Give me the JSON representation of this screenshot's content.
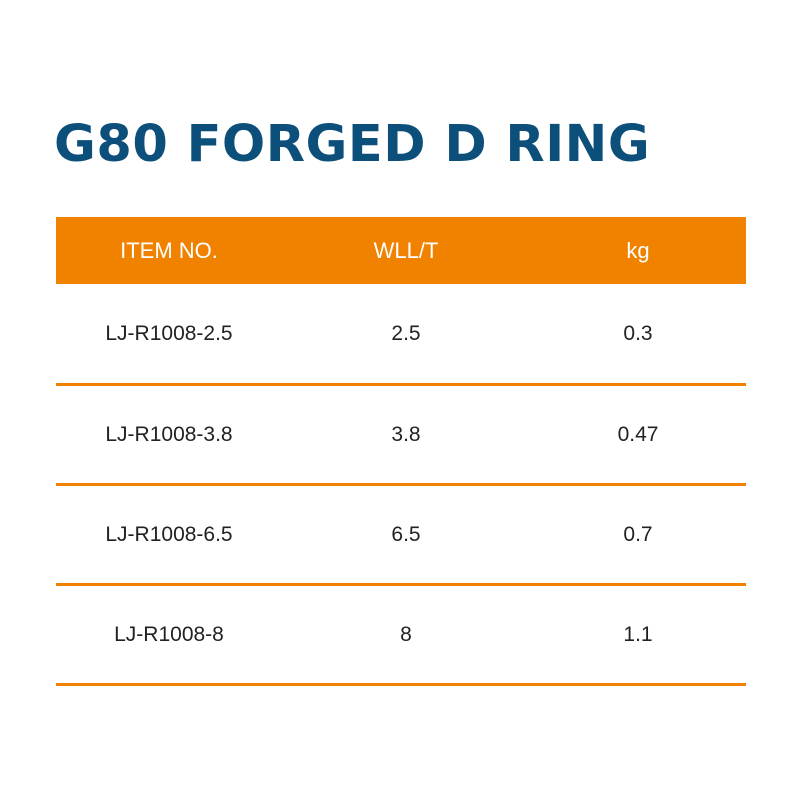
{
  "title": "G80 FORGED D RING",
  "table": {
    "headers": [
      "ITEM NO.",
      "WLL/T",
      "kg"
    ],
    "rows": [
      {
        "item_no": "LJ-R1008-2.5",
        "wll": "2.5",
        "kg": "0.3"
      },
      {
        "item_no": "LJ-R1008-3.8",
        "wll": "3.8",
        "kg": "0.47"
      },
      {
        "item_no": "LJ-R1008-6.5",
        "wll": "6.5",
        "kg": "0.7"
      },
      {
        "item_no": "LJ-R1008-8",
        "wll": "8",
        "kg": "1.1"
      }
    ]
  },
  "colors": {
    "title": "#0b4f7a",
    "accent": "#f08200"
  }
}
